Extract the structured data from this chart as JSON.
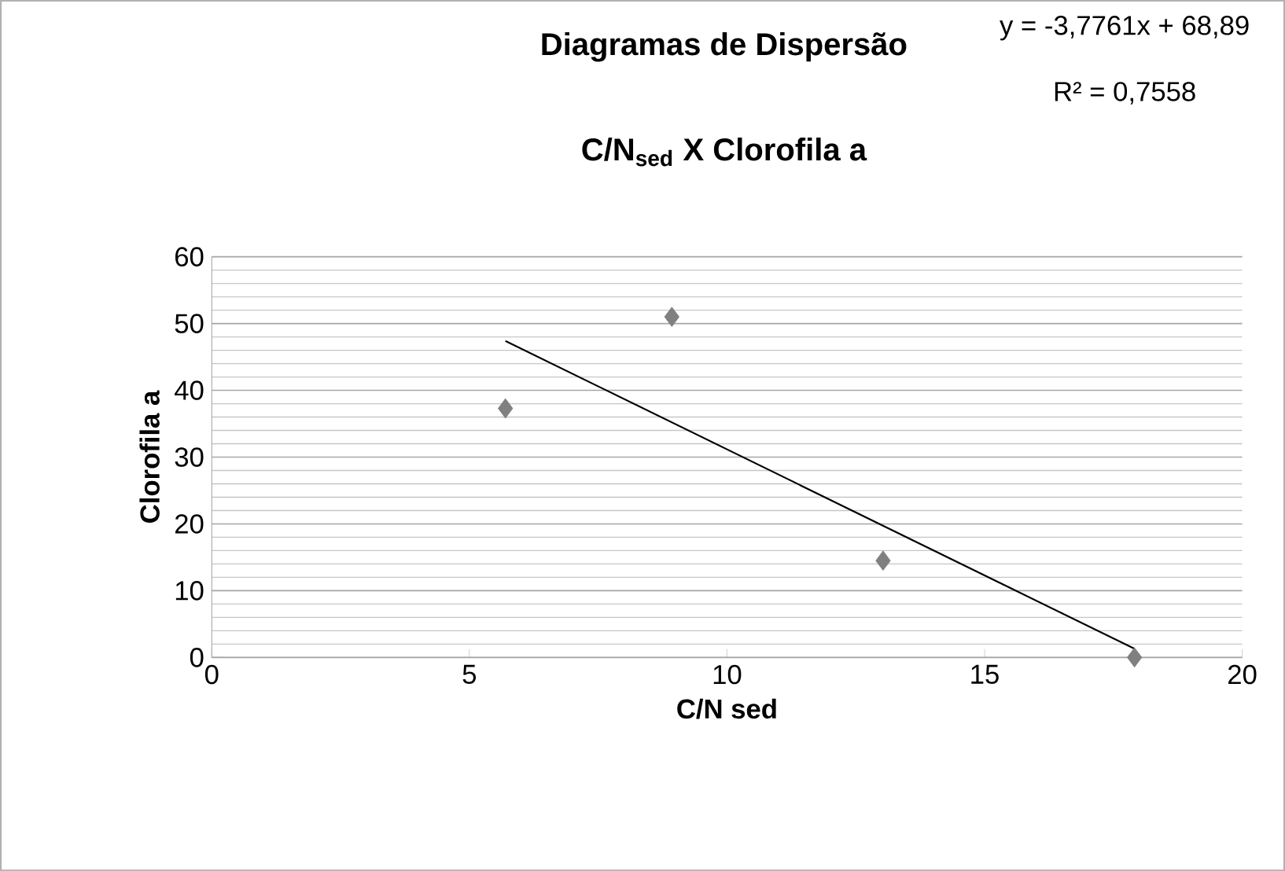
{
  "chart_data": {
    "type": "scatter",
    "title": "Diagramas de Dispersão",
    "subtitle": "C/N$_{sed}$ X Clorofila a",
    "xlabel": "C/N sed",
    "ylabel": "Clorofila a",
    "annotations": [
      "y = -3,7761x + 68,89",
      "R² = 0,7558"
    ],
    "xlim": [
      0,
      20
    ],
    "xticks": [
      0,
      5,
      10,
      15,
      20
    ],
    "ylim": [
      0,
      60
    ],
    "yticks": [
      0,
      10,
      20,
      30,
      40,
      50,
      60
    ],
    "grid": "y",
    "marker": "diamond",
    "series": [
      {
        "color": "#808080",
        "x": [
          5.7,
          8.93,
          13.03,
          17.91
        ],
        "values": [
          37.3,
          51.0,
          14.5,
          0.0
        ]
      },
      {
        "type": "line",
        "color": "#000000",
        "marker": "none",
        "x": [
          5.7,
          17.91
        ],
        "values": [
          47.4,
          1.3
        ]
      }
    ]
  }
}
